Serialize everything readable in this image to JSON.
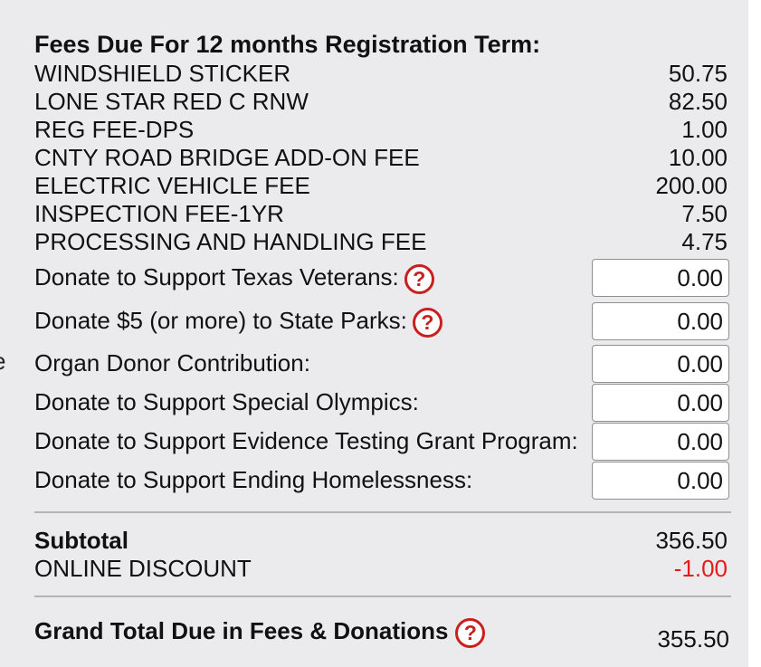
{
  "heading": "Fees Due For 12 months Registration Term:",
  "cut_glyph": "e",
  "fees": [
    {
      "label": "WINDSHIELD STICKER",
      "amount": "50.75"
    },
    {
      "label": "LONE STAR RED C RNW",
      "amount": "82.50"
    },
    {
      "label": "REG FEE-DPS",
      "amount": "1.00"
    },
    {
      "label": "CNTY ROAD BRIDGE ADD-ON FEE",
      "amount": "10.00"
    },
    {
      "label": "ELECTRIC VEHICLE FEE",
      "amount": "200.00"
    },
    {
      "label": "INSPECTION FEE-1YR",
      "amount": "7.50"
    },
    {
      "label": "PROCESSING AND HANDLING FEE",
      "amount": "4.75"
    }
  ],
  "donations": [
    {
      "label": "Donate to Support Texas Veterans:",
      "value": "0.00",
      "has_help": true
    },
    {
      "label": "Donate $5 (or more) to State Parks:",
      "value": "0.00",
      "has_help": true
    },
    {
      "label": "Organ Donor Contribution:",
      "value": "0.00",
      "has_help": false
    },
    {
      "label": "Donate to Support Special Olympics:",
      "value": "0.00",
      "has_help": false
    },
    {
      "label": "Donate to Support Evidence Testing Grant Program:",
      "value": "0.00",
      "has_help": false
    },
    {
      "label": "Donate to Support Ending Homelessness:",
      "value": "0.00",
      "has_help": false
    }
  ],
  "help_glyph": "?",
  "subtotal": {
    "label": "Subtotal",
    "amount": "356.50"
  },
  "discount": {
    "label": "ONLINE DISCOUNT",
    "amount": "-1.00"
  },
  "grand_total": {
    "label": "Grand Total Due in Fees & Donations",
    "amount": "355.50"
  },
  "colors": {
    "background": "#ebebed",
    "help_icon": "#c8201e",
    "discount": "#e31b1b",
    "divider": "#b4b4b4"
  },
  "icons": {
    "help": "question-circle-icon"
  }
}
